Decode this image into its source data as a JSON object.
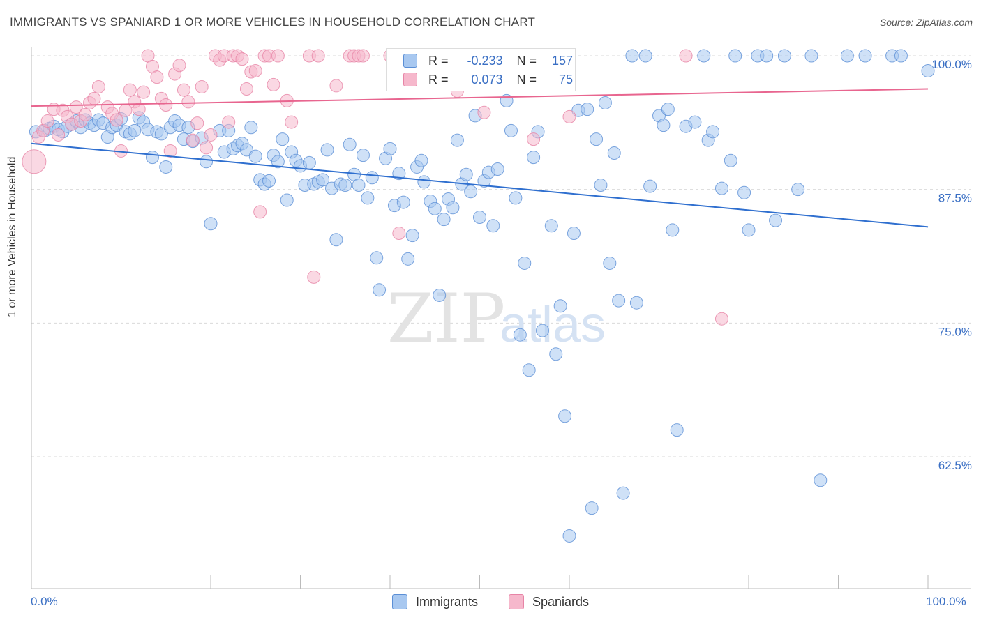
{
  "title": "IMMIGRANTS VS SPANIARD 1 OR MORE VEHICLES IN HOUSEHOLD CORRELATION CHART",
  "source": "Source: ZipAtlas.com",
  "watermark": {
    "zip": "ZIP",
    "atlas": "atlas"
  },
  "colors": {
    "blue_fill": "#a8c8f0",
    "blue_stroke": "#5b8fd6",
    "blue_line": "#2f6fcf",
    "pink_fill": "#f6b8cc",
    "pink_stroke": "#e784a6",
    "pink_line": "#e8658f",
    "axis_text": "#3a6fc4",
    "grid": "#d9d9d9"
  },
  "legend": {
    "rows": [
      {
        "r_label": "R =",
        "r_value": "-0.233",
        "n_label": "N =",
        "n_value": "157"
      },
      {
        "r_label": "R =",
        "r_value": "0.073",
        "n_label": "N =",
        "n_value": "75"
      }
    ]
  },
  "bottom_legend": {
    "immigrants": "Immigrants",
    "spaniards": "Spaniards"
  },
  "x_axis": {
    "min_label": "0.0%",
    "max_label": "100.0%"
  },
  "chart_data": {
    "type": "scatter",
    "title": "IMMIGRANTS VS SPANIARD 1 OR MORE VEHICLES IN HOUSEHOLD CORRELATION CHART",
    "ylabel": "1 or more Vehicles in Household",
    "xlim": [
      0,
      100
    ],
    "ylim": [
      50.5,
      101
    ],
    "y_ticks": [
      {
        "value": 100,
        "label": "100.0%"
      },
      {
        "value": 87.5,
        "label": "87.5%"
      },
      {
        "value": 75,
        "label": "75.0%"
      },
      {
        "value": 62.5,
        "label": "62.5%"
      }
    ],
    "grid": true,
    "series": [
      {
        "name": "Immigrants",
        "color": "#a8c8f0",
        "trend": {
          "x": [
            0,
            100
          ],
          "y": [
            91.8,
            84.0
          ]
        },
        "points": [
          [
            0.5,
            92.9
          ],
          [
            1.5,
            93.0
          ],
          [
            2.0,
            93.2
          ],
          [
            2.5,
            93.4
          ],
          [
            3.0,
            93.1
          ],
          [
            3.5,
            92.9
          ],
          [
            4.0,
            93.4
          ],
          [
            4.5,
            93.6
          ],
          [
            5.0,
            93.9
          ],
          [
            5.5,
            93.3
          ],
          [
            6.0,
            94.0
          ],
          [
            6.5,
            93.7
          ],
          [
            7.0,
            93.5
          ],
          [
            7.5,
            94.0
          ],
          [
            8.0,
            93.7
          ],
          [
            8.5,
            92.4
          ],
          [
            9.0,
            93.3
          ],
          [
            9.5,
            93.5
          ],
          [
            10.0,
            94.1
          ],
          [
            10.5,
            92.9
          ],
          [
            11.0,
            92.7
          ],
          [
            11.5,
            93.0
          ],
          [
            12.0,
            94.2
          ],
          [
            12.5,
            93.8
          ],
          [
            13.0,
            93.1
          ],
          [
            13.5,
            90.5
          ],
          [
            14.0,
            92.9
          ],
          [
            14.5,
            92.7
          ],
          [
            15.0,
            89.6
          ],
          [
            15.5,
            93.3
          ],
          [
            16.0,
            93.9
          ],
          [
            16.5,
            93.5
          ],
          [
            17.0,
            92.2
          ],
          [
            17.5,
            93.3
          ],
          [
            18.0,
            92.0
          ],
          [
            19.0,
            92.3
          ],
          [
            19.5,
            90.1
          ],
          [
            20.0,
            84.3
          ],
          [
            21.0,
            93.0
          ],
          [
            21.5,
            91.0
          ],
          [
            22.0,
            93.0
          ],
          [
            22.5,
            91.3
          ],
          [
            23.0,
            91.6
          ],
          [
            23.5,
            91.8
          ],
          [
            24.0,
            91.2
          ],
          [
            24.5,
            93.3
          ],
          [
            25.0,
            90.6
          ],
          [
            25.5,
            88.4
          ],
          [
            26.0,
            88.0
          ],
          [
            26.5,
            88.3
          ],
          [
            27.0,
            90.7
          ],
          [
            27.5,
            90.1
          ],
          [
            28.0,
            92.2
          ],
          [
            28.5,
            86.5
          ],
          [
            29.0,
            91.0
          ],
          [
            29.5,
            90.2
          ],
          [
            30.0,
            89.7
          ],
          [
            30.5,
            87.9
          ],
          [
            31.0,
            90.0
          ],
          [
            31.5,
            88.0
          ],
          [
            32.0,
            88.2
          ],
          [
            32.5,
            88.4
          ],
          [
            33.0,
            91.2
          ],
          [
            33.5,
            87.6
          ],
          [
            34.0,
            82.8
          ],
          [
            34.5,
            88.0
          ],
          [
            35.0,
            87.9
          ],
          [
            35.5,
            91.7
          ],
          [
            36.0,
            88.9
          ],
          [
            36.5,
            87.9
          ],
          [
            37.0,
            90.7
          ],
          [
            37.5,
            86.7
          ],
          [
            38.0,
            88.6
          ],
          [
            38.5,
            81.1
          ],
          [
            38.8,
            78.1
          ],
          [
            39.5,
            90.4
          ],
          [
            40.0,
            91.3
          ],
          [
            40.5,
            86.0
          ],
          [
            41.0,
            89.0
          ],
          [
            41.5,
            86.3
          ],
          [
            42.0,
            81.0
          ],
          [
            42.5,
            83.2
          ],
          [
            43.0,
            89.6
          ],
          [
            43.5,
            90.2
          ],
          [
            43.8,
            88.2
          ],
          [
            44.5,
            86.4
          ],
          [
            45.0,
            85.7
          ],
          [
            45.5,
            77.6
          ],
          [
            46.0,
            84.7
          ],
          [
            46.5,
            86.6
          ],
          [
            47.0,
            85.8
          ],
          [
            47.5,
            92.1
          ],
          [
            48.0,
            88.0
          ],
          [
            48.5,
            88.9
          ],
          [
            49.0,
            87.3
          ],
          [
            49.5,
            94.4
          ],
          [
            50.0,
            84.9
          ],
          [
            50.5,
            88.3
          ],
          [
            51.0,
            89.1
          ],
          [
            51.5,
            84.1
          ],
          [
            52.0,
            89.4
          ],
          [
            53.0,
            95.8
          ],
          [
            53.5,
            93.0
          ],
          [
            54.0,
            86.7
          ],
          [
            54.5,
            73.9
          ],
          [
            55.0,
            80.6
          ],
          [
            55.5,
            70.6
          ],
          [
            56.0,
            90.5
          ],
          [
            56.5,
            92.9
          ],
          [
            57.0,
            74.3
          ],
          [
            58.0,
            84.1
          ],
          [
            58.5,
            72.1
          ],
          [
            59.0,
            76.6
          ],
          [
            59.5,
            66.3
          ],
          [
            60.0,
            55.1
          ],
          [
            60.5,
            83.4
          ],
          [
            61.0,
            94.9
          ],
          [
            62.0,
            95.0
          ],
          [
            62.5,
            57.7
          ],
          [
            63.0,
            92.2
          ],
          [
            63.5,
            87.9
          ],
          [
            64.0,
            95.6
          ],
          [
            64.5,
            80.6
          ],
          [
            65.0,
            90.9
          ],
          [
            65.5,
            77.1
          ],
          [
            66.0,
            59.1
          ],
          [
            67.0,
            100.0
          ],
          [
            67.5,
            76.9
          ],
          [
            68.5,
            100.0
          ],
          [
            69.0,
            87.8
          ],
          [
            70.0,
            94.4
          ],
          [
            70.5,
            93.5
          ],
          [
            71.0,
            95.0
          ],
          [
            71.5,
            83.7
          ],
          [
            72.0,
            65.0
          ],
          [
            73.0,
            93.4
          ],
          [
            74.0,
            93.8
          ],
          [
            75.0,
            100.0
          ],
          [
            75.5,
            92.1
          ],
          [
            76.0,
            92.9
          ],
          [
            77.0,
            87.6
          ],
          [
            78.0,
            90.2
          ],
          [
            78.5,
            100.0
          ],
          [
            79.5,
            87.2
          ],
          [
            80.0,
            83.7
          ],
          [
            81.0,
            100.0
          ],
          [
            82.0,
            100.0
          ],
          [
            83.0,
            84.6
          ],
          [
            84.0,
            100.0
          ],
          [
            85.5,
            87.5
          ],
          [
            87.0,
            100.0
          ],
          [
            88.0,
            60.3
          ],
          [
            91.0,
            100.0
          ],
          [
            93.0,
            100.0
          ],
          [
            96.0,
            100.0
          ],
          [
            100.0,
            98.6
          ],
          [
            97.0,
            100.0
          ]
        ]
      },
      {
        "name": "Spaniards",
        "color": "#f6b8cc",
        "trend": {
          "x": [
            0,
            100
          ],
          "y": [
            95.3,
            96.9
          ]
        },
        "points": [
          [
            0.3,
            90.1
          ],
          [
            0.8,
            92.4
          ],
          [
            1.3,
            93.0
          ],
          [
            1.8,
            93.9
          ],
          [
            2.5,
            95.0
          ],
          [
            3.0,
            92.6
          ],
          [
            3.5,
            94.9
          ],
          [
            4.0,
            94.3
          ],
          [
            4.5,
            93.6
          ],
          [
            5.0,
            95.2
          ],
          [
            5.5,
            93.9
          ],
          [
            6.0,
            94.5
          ],
          [
            6.5,
            95.6
          ],
          [
            7.0,
            96.0
          ],
          [
            7.5,
            97.1
          ],
          [
            8.5,
            95.2
          ],
          [
            9.0,
            94.6
          ],
          [
            9.5,
            94.0
          ],
          [
            10.0,
            91.1
          ],
          [
            10.5,
            94.9
          ],
          [
            11.0,
            96.8
          ],
          [
            11.5,
            95.7
          ],
          [
            12.0,
            95.0
          ],
          [
            12.5,
            96.6
          ],
          [
            13.0,
            100.0
          ],
          [
            13.5,
            99.0
          ],
          [
            14.0,
            98.0
          ],
          [
            14.5,
            96.0
          ],
          [
            15.0,
            95.4
          ],
          [
            15.5,
            91.1
          ],
          [
            16.0,
            98.3
          ],
          [
            16.5,
            99.1
          ],
          [
            17.0,
            96.8
          ],
          [
            17.5,
            95.7
          ],
          [
            18.0,
            92.1
          ],
          [
            18.5,
            93.7
          ],
          [
            19.0,
            97.1
          ],
          [
            19.5,
            91.4
          ],
          [
            20.0,
            92.6
          ],
          [
            20.5,
            100.0
          ],
          [
            21.0,
            99.6
          ],
          [
            21.5,
            100.0
          ],
          [
            22.0,
            93.8
          ],
          [
            22.5,
            100.0
          ],
          [
            23.0,
            100.0
          ],
          [
            23.5,
            99.7
          ],
          [
            24.0,
            96.9
          ],
          [
            24.5,
            98.5
          ],
          [
            25.0,
            98.6
          ],
          [
            25.5,
            85.4
          ],
          [
            26.0,
            100.0
          ],
          [
            26.5,
            100.0
          ],
          [
            27.0,
            97.3
          ],
          [
            27.5,
            100.0
          ],
          [
            28.5,
            95.8
          ],
          [
            29.0,
            93.8
          ],
          [
            31.0,
            100.0
          ],
          [
            31.5,
            79.3
          ],
          [
            32.0,
            100.0
          ],
          [
            34.0,
            97.2
          ],
          [
            35.5,
            100.0
          ],
          [
            36.0,
            100.0
          ],
          [
            36.5,
            100.0
          ],
          [
            37.0,
            100.0
          ],
          [
            40.0,
            100.0
          ],
          [
            41.0,
            83.4
          ],
          [
            47.5,
            96.7
          ],
          [
            48.0,
            100.0
          ],
          [
            50.5,
            94.7
          ],
          [
            52.0,
            100.0
          ],
          [
            53.0,
            100.0
          ],
          [
            56.0,
            92.2
          ],
          [
            60.0,
            94.3
          ],
          [
            73.0,
            100.0
          ],
          [
            77.0,
            75.4
          ]
        ]
      }
    ]
  }
}
